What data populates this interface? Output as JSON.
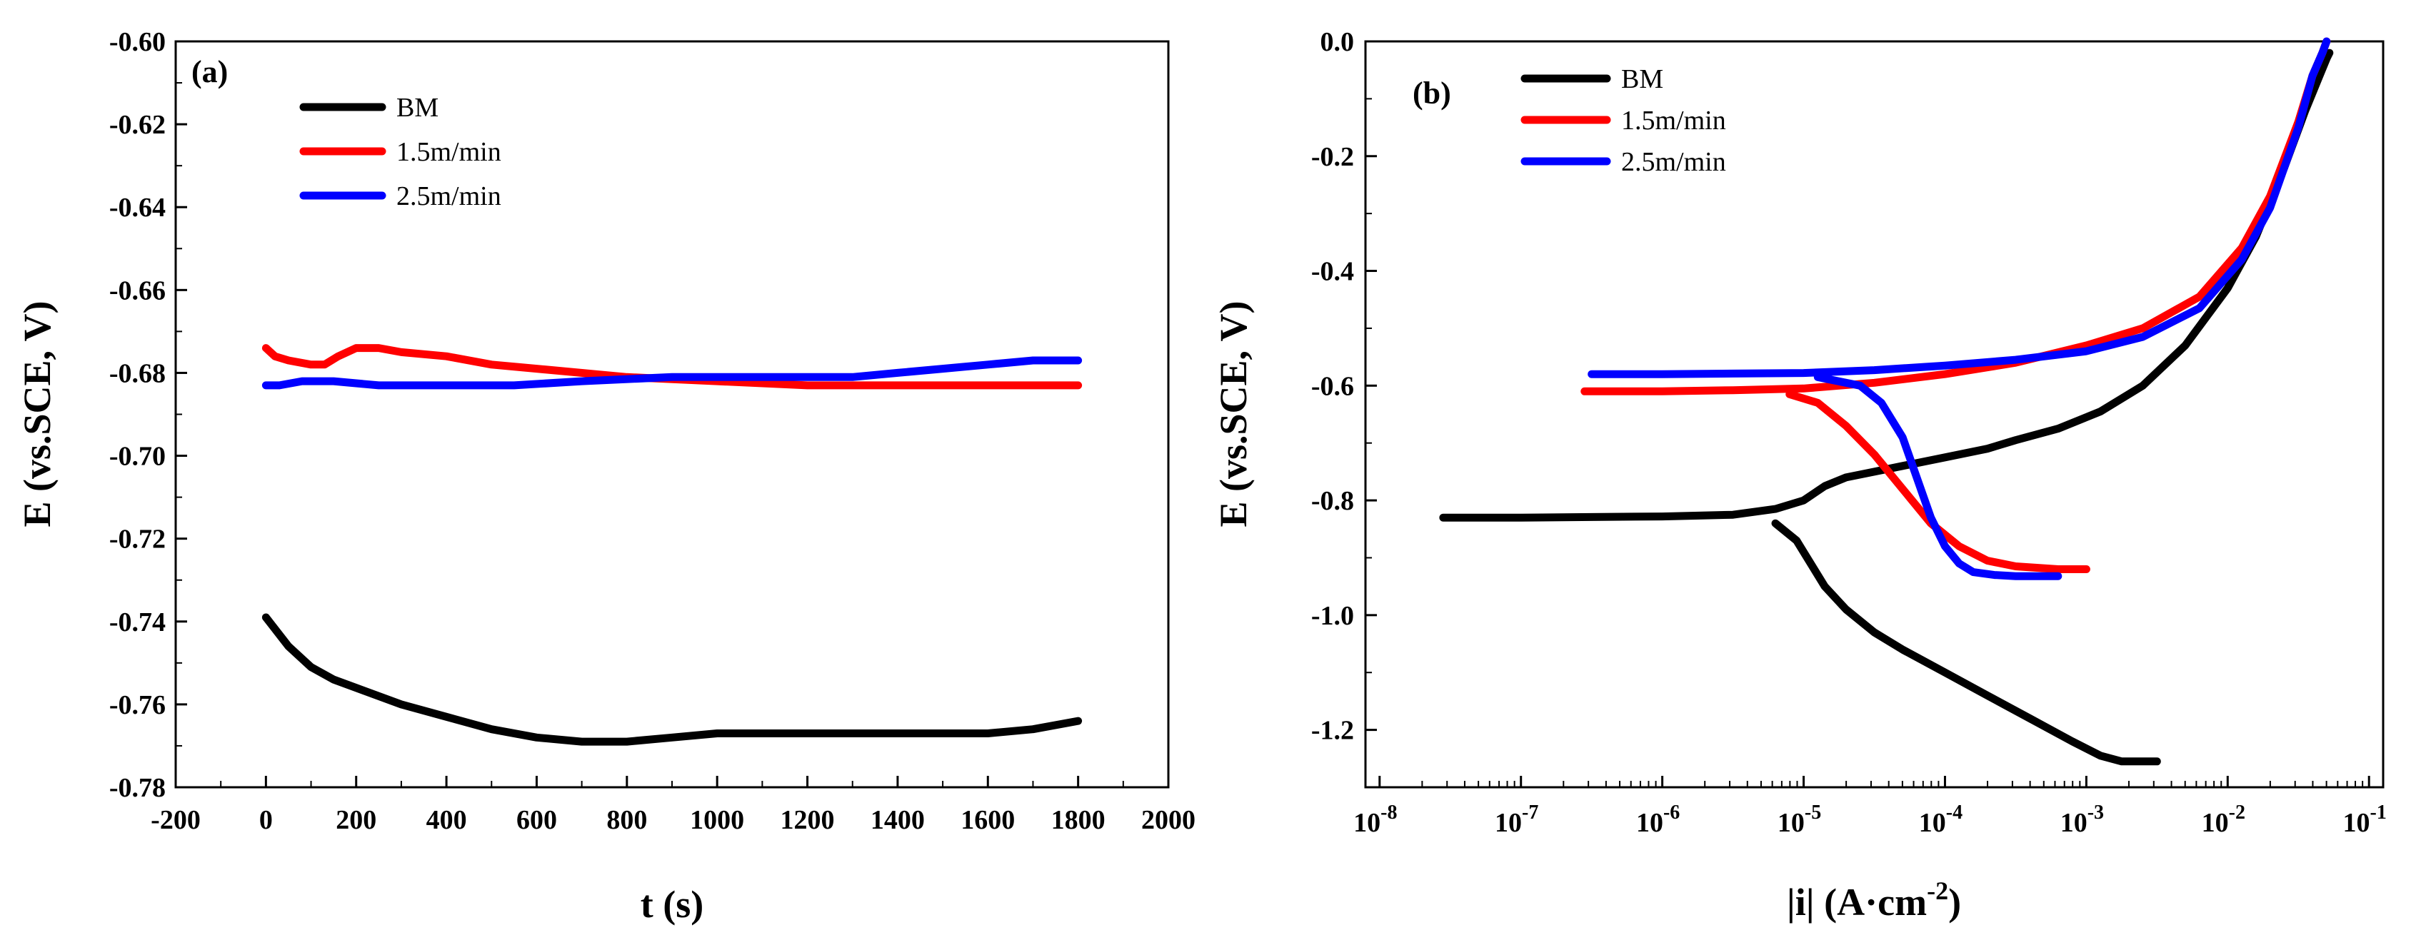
{
  "chart_data": [
    {
      "type": "line",
      "panel_label": "(a)",
      "xlabel": "t (s)",
      "ylabel": "E (vs.SCE, V)",
      "xlim": [
        -200,
        2000
      ],
      "ylim": [
        -0.78,
        -0.6
      ],
      "x_ticks": [
        -200,
        0,
        200,
        400,
        600,
        800,
        1000,
        1200,
        1400,
        1600,
        1800,
        2000
      ],
      "x_tick_labels": [
        "-200",
        "0",
        "200",
        "400",
        "600",
        "800",
        "1000",
        "1200",
        "1400",
        "1600",
        "1800",
        "2000"
      ],
      "y_ticks": [
        -0.78,
        -0.76,
        -0.74,
        -0.72,
        -0.7,
        -0.68,
        -0.66,
        -0.64,
        -0.62,
        -0.6
      ],
      "y_tick_labels": [
        "-0.78",
        "-0.76",
        "-0.74",
        "-0.72",
        "-0.70",
        "-0.68",
        "-0.66",
        "-0.64",
        "-0.62",
        "-0.60"
      ],
      "legend": "top-left",
      "series": [
        {
          "name": "BM",
          "color": "#000000",
          "x": [
            0,
            50,
            100,
            150,
            200,
            300,
            400,
            500,
            600,
            700,
            800,
            900,
            1000,
            1200,
            1400,
            1500,
            1600,
            1700,
            1800
          ],
          "y": [
            -0.739,
            -0.746,
            -0.751,
            -0.754,
            -0.756,
            -0.76,
            -0.763,
            -0.766,
            -0.768,
            -0.769,
            -0.769,
            -0.768,
            -0.767,
            -0.767,
            -0.767,
            -0.767,
            -0.767,
            -0.766,
            -0.764
          ]
        },
        {
          "name": "1.5m/min",
          "color": "#ff0000",
          "x": [
            0,
            20,
            50,
            100,
            130,
            160,
            200,
            250,
            300,
            400,
            500,
            600,
            800,
            1000,
            1200,
            1400,
            1600,
            1800
          ],
          "y": [
            -0.674,
            -0.676,
            -0.677,
            -0.678,
            -0.678,
            -0.676,
            -0.674,
            -0.674,
            -0.675,
            -0.676,
            -0.678,
            -0.679,
            -0.681,
            -0.682,
            -0.683,
            -0.683,
            -0.683,
            -0.683
          ]
        },
        {
          "name": "2.5m/min",
          "color": "#0000ff",
          "x": [
            0,
            30,
            80,
            150,
            250,
            400,
            550,
            700,
            900,
            1100,
            1300,
            1400,
            1500,
            1600,
            1700,
            1800
          ],
          "y": [
            -0.683,
            -0.683,
            -0.682,
            -0.682,
            -0.683,
            -0.683,
            -0.683,
            -0.682,
            -0.681,
            -0.681,
            -0.681,
            -0.68,
            -0.679,
            -0.678,
            -0.677,
            -0.677
          ]
        }
      ]
    },
    {
      "type": "line",
      "panel_label": "(b)",
      "xlabel_main": "|i| (A·cm",
      "xlabel_sup": "-2",
      "xlabel_end": ")",
      "ylabel": "E (vs.SCE, V)",
      "xscale": "log",
      "xlim_exp": [
        -8,
        -1
      ],
      "ylim": [
        -1.3,
        0.0
      ],
      "x_tick_exps": [
        -8,
        -7,
        -6,
        -5,
        -4,
        -3,
        -2,
        -1
      ],
      "x_tick_exp_labels": [
        "-8",
        "-7",
        "-6",
        "-5",
        "-4",
        "-3",
        "-2",
        "-1"
      ],
      "x_tick_base": "10",
      "y_ticks": [
        -1.2,
        -1.0,
        -0.8,
        -0.6,
        -0.4,
        -0.2,
        0.0
      ],
      "y_tick_labels": [
        "-1.2",
        "-1.0",
        "-0.8",
        "-0.6",
        "-0.4",
        "-0.2",
        "0.0"
      ],
      "legend": "top-left",
      "series": [
        {
          "name": "BM",
          "color": "#000000",
          "branches": [
            {
              "x_exp": [
                -7.55,
                -7,
                -6.5,
                -6,
                -5.5,
                -5.2,
                -5.0,
                -4.85,
                -4.7,
                -4.5,
                -4.3,
                -4.0,
                -3.7,
                -3.5,
                -3.2,
                -2.9,
                -2.6,
                -2.3,
                -2.0,
                -1.8,
                -1.6,
                -1.45,
                -1.35,
                -1.3,
                -1.28
              ],
              "y": [
                -0.83,
                -0.83,
                -0.829,
                -0.828,
                -0.825,
                -0.815,
                -0.8,
                -0.775,
                -0.76,
                -0.75,
                -0.74,
                -0.725,
                -0.71,
                -0.695,
                -0.675,
                -0.645,
                -0.6,
                -0.53,
                -0.43,
                -0.34,
                -0.22,
                -0.12,
                -0.06,
                -0.03,
                -0.02
              ]
            },
            {
              "x_exp": [
                -5.2,
                -5.05,
                -4.95,
                -4.85,
                -4.7,
                -4.5,
                -4.3,
                -4.0,
                -3.7,
                -3.4,
                -3.1,
                -2.9,
                -2.75,
                -2.6,
                -2.5
              ],
              "y": [
                -0.84,
                -0.87,
                -0.91,
                -0.95,
                -0.99,
                -1.03,
                -1.06,
                -1.1,
                -1.14,
                -1.18,
                -1.22,
                -1.245,
                -1.255,
                -1.255,
                -1.255
              ]
            }
          ]
        },
        {
          "name": "1.5m/min",
          "color": "#ff0000",
          "branches": [
            {
              "x_exp": [
                -6.55,
                -6,
                -5.5,
                -5.0,
                -4.5,
                -4.0,
                -3.5,
                -3.0,
                -2.6,
                -2.2,
                -1.9,
                -1.7,
                -1.5,
                -1.4,
                -1.33,
                -1.3
              ],
              "y": [
                -0.61,
                -0.61,
                -0.608,
                -0.605,
                -0.595,
                -0.58,
                -0.56,
                -0.53,
                -0.5,
                -0.445,
                -0.36,
                -0.27,
                -0.14,
                -0.06,
                -0.02,
                0.0
              ]
            },
            {
              "x_exp": [
                -5.1,
                -4.9,
                -4.7,
                -4.5,
                -4.3,
                -4.1,
                -3.9,
                -3.7,
                -3.5,
                -3.2,
                -3.0
              ],
              "y": [
                -0.615,
                -0.63,
                -0.67,
                -0.72,
                -0.78,
                -0.84,
                -0.88,
                -0.905,
                -0.915,
                -0.92,
                -0.92
              ]
            }
          ]
        },
        {
          "name": "2.5m/min",
          "color": "#0000ff",
          "branches": [
            {
              "x_exp": [
                -6.5,
                -6,
                -5.5,
                -5.0,
                -4.5,
                -4.0,
                -3.5,
                -3.0,
                -2.6,
                -2.2,
                -1.9,
                -1.7,
                -1.5,
                -1.4,
                -1.33,
                -1.3
              ],
              "y": [
                -0.58,
                -0.58,
                -0.579,
                -0.578,
                -0.573,
                -0.565,
                -0.555,
                -0.54,
                -0.515,
                -0.465,
                -0.38,
                -0.29,
                -0.15,
                -0.06,
                -0.02,
                0.0
              ]
            },
            {
              "x_exp": [
                -4.9,
                -4.6,
                -4.45,
                -4.3,
                -4.2,
                -4.1,
                -4.0,
                -3.9,
                -3.8,
                -3.65,
                -3.5,
                -3.3,
                -3.2
              ],
              "y": [
                -0.585,
                -0.6,
                -0.63,
                -0.69,
                -0.76,
                -0.83,
                -0.88,
                -0.91,
                -0.925,
                -0.93,
                -0.932,
                -0.932,
                -0.932
              ]
            }
          ]
        }
      ]
    }
  ]
}
